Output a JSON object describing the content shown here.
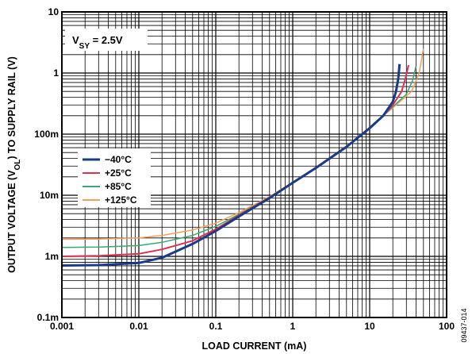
{
  "chart_data": {
    "type": "line",
    "xlabel": "LOAD CURRENT (mA)",
    "ylabel_parts": [
      "OUTPUT VOLTAGE (V",
      "OL",
      ") TO SUPPLY RAIL (V)"
    ],
    "x_scale": "log",
    "y_scale": "log",
    "xlim": [
      0.001,
      100
    ],
    "ylim": [
      0.0001,
      10
    ],
    "grid": true,
    "legend_position": "left",
    "x_ticks": [
      {
        "value": 0.001,
        "label": "0.001"
      },
      {
        "value": 0.01,
        "label": "0.01"
      },
      {
        "value": 0.1,
        "label": "0.1"
      },
      {
        "value": 1,
        "label": "1"
      },
      {
        "value": 10,
        "label": "10"
      },
      {
        "value": 100,
        "label": "100"
      }
    ],
    "y_ticks": [
      {
        "value": 10,
        "label": "10"
      },
      {
        "value": 1,
        "label": "1"
      },
      {
        "value": 0.1,
        "label": "100m"
      },
      {
        "value": 0.01,
        "label": "10m"
      },
      {
        "value": 0.001,
        "label": "1m"
      },
      {
        "value": 0.0001,
        "label": "0.1m"
      }
    ],
    "annotation_parts": [
      "V",
      "SY",
      " = 2.5V"
    ],
    "figure_id": "09437-014",
    "series": [
      {
        "name": "−40°C",
        "color": "#1a3a8a",
        "width": 3,
        "points": [
          [
            0.001,
            0.00071
          ],
          [
            0.003,
            0.00072
          ],
          [
            0.01,
            0.00078
          ],
          [
            0.02,
            0.00095
          ],
          [
            0.05,
            0.0016
          ],
          [
            0.1,
            0.0026
          ],
          [
            0.2,
            0.0045
          ],
          [
            0.5,
            0.009
          ],
          [
            1,
            0.016
          ],
          [
            2,
            0.028
          ],
          [
            5,
            0.062
          ],
          [
            10,
            0.125
          ],
          [
            15,
            0.2
          ],
          [
            20,
            0.34
          ],
          [
            22,
            0.5
          ],
          [
            23.5,
            0.8
          ],
          [
            24.5,
            1.4
          ]
        ]
      },
      {
        "name": "+25°C",
        "color": "#e03050",
        "width": 2,
        "points": [
          [
            0.001,
            0.001
          ],
          [
            0.003,
            0.00102
          ],
          [
            0.01,
            0.0011
          ],
          [
            0.02,
            0.0013
          ],
          [
            0.05,
            0.0018
          ],
          [
            0.1,
            0.0028
          ],
          [
            0.2,
            0.0047
          ],
          [
            0.5,
            0.0092
          ],
          [
            1,
            0.0162
          ],
          [
            2,
            0.0285
          ],
          [
            5,
            0.063
          ],
          [
            10,
            0.128
          ],
          [
            15,
            0.2
          ],
          [
            20,
            0.3
          ],
          [
            26,
            0.5
          ],
          [
            29,
            0.8
          ],
          [
            32,
            1.35
          ]
        ]
      },
      {
        "name": "+85°C",
        "color": "#3aa870",
        "width": 1.5,
        "points": [
          [
            0.001,
            0.0014
          ],
          [
            0.003,
            0.00142
          ],
          [
            0.01,
            0.0015
          ],
          [
            0.02,
            0.0017
          ],
          [
            0.05,
            0.0022
          ],
          [
            0.1,
            0.0031
          ],
          [
            0.2,
            0.0049
          ],
          [
            0.5,
            0.0093
          ],
          [
            1,
            0.0162
          ],
          [
            2,
            0.0285
          ],
          [
            5,
            0.063
          ],
          [
            10,
            0.128
          ],
          [
            20,
            0.28
          ],
          [
            30,
            0.45
          ],
          [
            36,
            0.75
          ],
          [
            40,
            1.3
          ]
        ]
      },
      {
        "name": "+125°C",
        "color": "#f5a060",
        "width": 1.5,
        "points": [
          [
            0.001,
            0.0019
          ],
          [
            0.003,
            0.00192
          ],
          [
            0.01,
            0.002
          ],
          [
            0.02,
            0.0022
          ],
          [
            0.05,
            0.0027
          ],
          [
            0.1,
            0.0035
          ],
          [
            0.2,
            0.0052
          ],
          [
            0.5,
            0.0095
          ],
          [
            1,
            0.0163
          ],
          [
            2,
            0.0287
          ],
          [
            5,
            0.063
          ],
          [
            10,
            0.128
          ],
          [
            20,
            0.27
          ],
          [
            35,
            0.5
          ],
          [
            44,
            1.0
          ],
          [
            50,
            2.5
          ]
        ]
      }
    ]
  }
}
